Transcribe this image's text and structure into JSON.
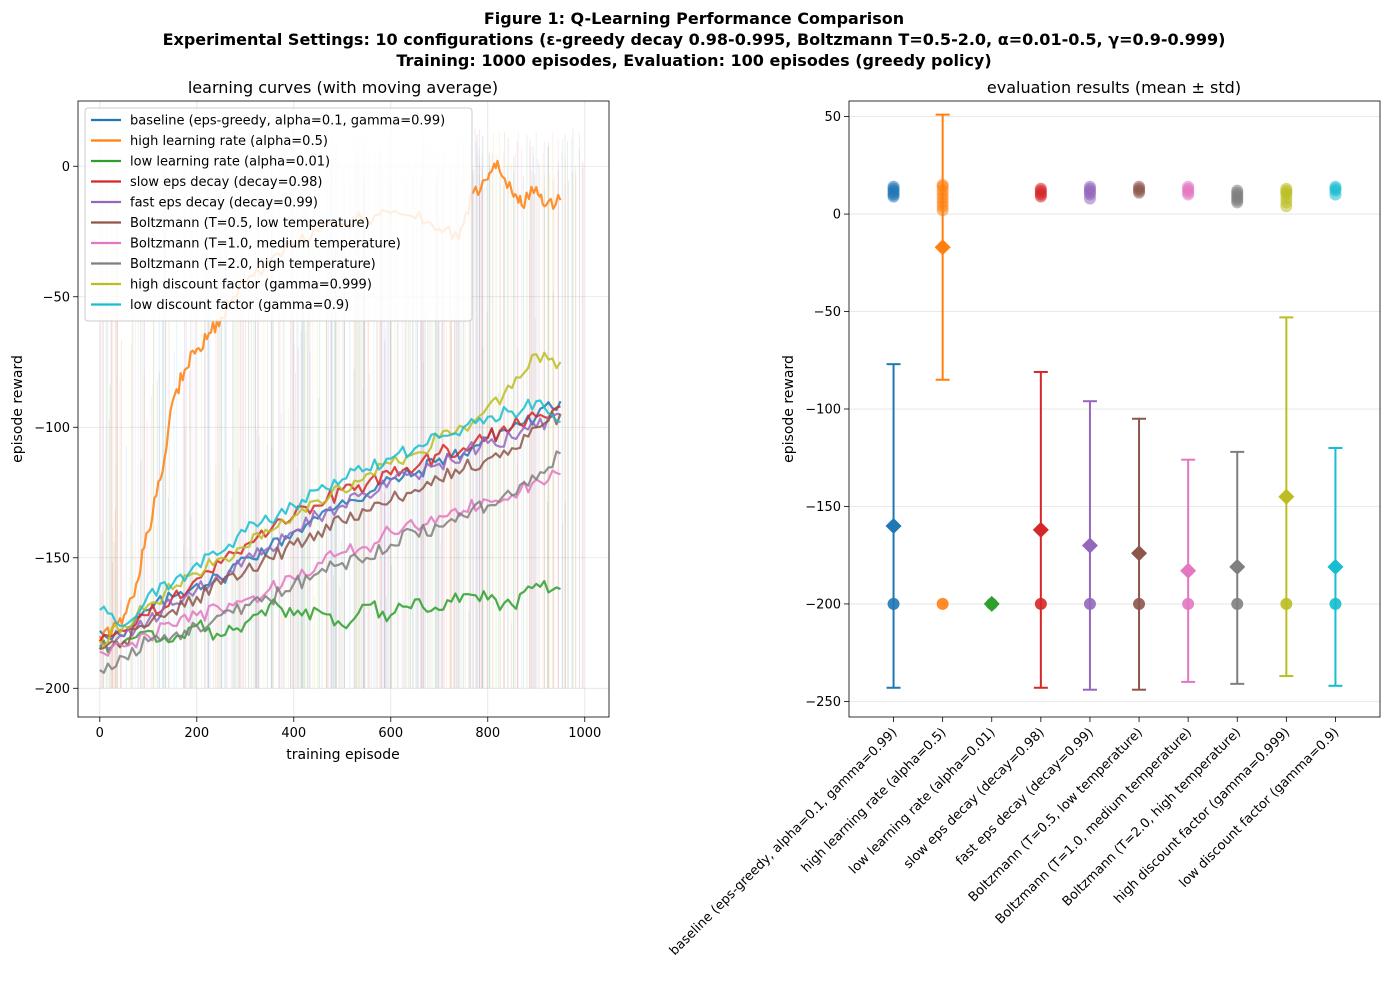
{
  "figure": {
    "title_lines": [
      "Figure 1: Q-Learning Performance Comparison",
      "Experimental Settings: 10 configurations (ε-greedy decay 0.98-0.995, Boltzmann T=0.5-2.0, α=0.01-0.5, γ=0.9-0.999)",
      "Training: 1000 episodes, Evaluation: 100 episodes (greedy policy)"
    ]
  },
  "chart_data": [
    {
      "type": "line",
      "title": "learning curves (with moving average)",
      "xlabel": "training episode",
      "ylabel": "episode reward",
      "xlim": [
        -45,
        1050
      ],
      "ylim": [
        -211,
        25
      ],
      "xticks": [
        0,
        200,
        400,
        600,
        800,
        1000
      ],
      "yticks": [
        0,
        -50,
        -100,
        -150,
        -200
      ],
      "grid": true,
      "legend_position": "top-left",
      "raw_episode_reward_range": [
        -200,
        15
      ],
      "series": [
        {
          "name": "baseline (eps-greedy, alpha=0.1, gamma=0.99)",
          "color": "#1f77b4",
          "x": [
            0,
            50,
            100,
            150,
            200,
            250,
            300,
            350,
            400,
            450,
            500,
            550,
            600,
            650,
            700,
            750,
            800,
            850,
            900,
            950
          ],
          "y": [
            -178,
            -180,
            -170,
            -165,
            -160,
            -158,
            -150,
            -146,
            -140,
            -135,
            -128,
            -126,
            -120,
            -118,
            -112,
            -110,
            -104,
            -100,
            -96,
            -90
          ]
        },
        {
          "name": "high learning rate (alpha=0.5)",
          "color": "#ff7f0e",
          "x": [
            0,
            25,
            50,
            75,
            100,
            125,
            150,
            175,
            200,
            225,
            250,
            275,
            300,
            350,
            400,
            450,
            500,
            550,
            600,
            650,
            700,
            740,
            770,
            800,
            820,
            850,
            870,
            900,
            920,
            950
          ],
          "y": [
            -180,
            -178,
            -172,
            -160,
            -140,
            -120,
            -90,
            -78,
            -70,
            -64,
            -58,
            -50,
            -45,
            -36,
            -30,
            -25,
            -22,
            -20,
            -18,
            -20,
            -24,
            -28,
            -10,
            -5,
            2,
            -10,
            -15,
            -8,
            -15,
            -13
          ]
        },
        {
          "name": "low learning rate (alpha=0.01)",
          "color": "#2ca02c",
          "x": [
            0,
            50,
            100,
            150,
            200,
            250,
            300,
            350,
            400,
            450,
            500,
            550,
            600,
            650,
            700,
            750,
            800,
            850,
            900,
            950
          ],
          "y": [
            -185,
            -182,
            -178,
            -182,
            -176,
            -180,
            -175,
            -168,
            -172,
            -170,
            -176,
            -168,
            -172,
            -166,
            -170,
            -164,
            -166,
            -168,
            -160,
            -162
          ]
        },
        {
          "name": "slow eps decay (decay=0.98)",
          "color": "#d62728",
          "x": [
            0,
            50,
            100,
            150,
            200,
            250,
            300,
            350,
            400,
            450,
            500,
            550,
            600,
            650,
            700,
            750,
            800,
            850,
            900,
            950
          ],
          "y": [
            -182,
            -178,
            -172,
            -165,
            -158,
            -152,
            -145,
            -140,
            -134,
            -130,
            -124,
            -122,
            -118,
            -116,
            -110,
            -108,
            -104,
            -100,
            -96,
            -92
          ]
        },
        {
          "name": "fast eps decay (decay=0.99)",
          "color": "#9467bd",
          "x": [
            0,
            50,
            100,
            150,
            200,
            250,
            300,
            350,
            400,
            450,
            500,
            550,
            600,
            650,
            700,
            750,
            800,
            850,
            900,
            950
          ],
          "y": [
            -184,
            -180,
            -174,
            -168,
            -162,
            -158,
            -150,
            -146,
            -140,
            -134,
            -130,
            -126,
            -120,
            -118,
            -114,
            -110,
            -106,
            -104,
            -100,
            -95
          ]
        },
        {
          "name": "Boltzmann (T=0.5, low temperature)",
          "color": "#8c564b",
          "x": [
            0,
            50,
            100,
            150,
            200,
            250,
            300,
            350,
            400,
            450,
            500,
            550,
            600,
            650,
            700,
            750,
            800,
            850,
            900,
            950
          ],
          "y": [
            -185,
            -182,
            -176,
            -170,
            -165,
            -160,
            -155,
            -150,
            -145,
            -140,
            -136,
            -132,
            -128,
            -124,
            -120,
            -116,
            -112,
            -108,
            -100,
            -95
          ]
        },
        {
          "name": "Boltzmann (T=1.0, medium temperature)",
          "color": "#e377c2",
          "x": [
            0,
            50,
            100,
            150,
            200,
            250,
            300,
            350,
            400,
            450,
            500,
            550,
            600,
            650,
            700,
            750,
            800,
            850,
            900,
            950
          ],
          "y": [
            -186,
            -184,
            -180,
            -176,
            -172,
            -170,
            -166,
            -162,
            -158,
            -152,
            -148,
            -146,
            -140,
            -138,
            -134,
            -132,
            -128,
            -126,
            -120,
            -118
          ]
        },
        {
          "name": "Boltzmann (T=2.0, high temperature)",
          "color": "#7f7f7f",
          "x": [
            0,
            50,
            100,
            150,
            200,
            250,
            300,
            350,
            400,
            450,
            500,
            550,
            600,
            650,
            700,
            750,
            800,
            850,
            900,
            950
          ],
          "y": [
            -193,
            -188,
            -182,
            -180,
            -176,
            -172,
            -168,
            -166,
            -160,
            -156,
            -152,
            -150,
            -145,
            -140,
            -138,
            -134,
            -130,
            -126,
            -120,
            -110
          ]
        },
        {
          "name": "high discount factor (gamma=0.999)",
          "color": "#bcbd22",
          "x": [
            0,
            50,
            100,
            150,
            200,
            250,
            300,
            350,
            400,
            450,
            500,
            550,
            600,
            650,
            700,
            750,
            800,
            850,
            900,
            950
          ],
          "y": [
            -182,
            -176,
            -168,
            -162,
            -156,
            -150,
            -146,
            -140,
            -134,
            -128,
            -124,
            -118,
            -114,
            -110,
            -104,
            -100,
            -92,
            -85,
            -72,
            -75
          ]
        },
        {
          "name": "low discount factor (gamma=0.9)",
          "color": "#17becf",
          "x": [
            0,
            50,
            100,
            150,
            200,
            250,
            300,
            350,
            400,
            450,
            500,
            550,
            600,
            650,
            700,
            750,
            800,
            850,
            900,
            950
          ],
          "y": [
            -170,
            -176,
            -164,
            -160,
            -152,
            -148,
            -140,
            -136,
            -130,
            -124,
            -120,
            -116,
            -112,
            -108,
            -104,
            -100,
            -96,
            -94,
            -90,
            -98
          ]
        }
      ]
    },
    {
      "type": "scatter",
      "title": "evaluation results (mean ± std)",
      "ylabel": "episode reward",
      "ylim": [
        -258,
        58
      ],
      "yticks": [
        50,
        0,
        -50,
        -100,
        -150,
        -200,
        -250
      ],
      "grid": true,
      "categories": [
        "baseline (eps-greedy, alpha=0.1, gamma=0.99)",
        "high learning rate (alpha=0.5)",
        "low learning rate (alpha=0.01)",
        "slow eps decay (decay=0.98)",
        "fast eps decay (decay=0.99)",
        "Boltzmann (T=0.5, low temperature)",
        "Boltzmann (T=1.0, medium temperature)",
        "Boltzmann (T=2.0, high temperature)",
        "high discount factor (gamma=0.999)",
        "low discount factor (gamma=0.9)"
      ],
      "colors": [
        "#1f77b4",
        "#ff7f0e",
        "#2ca02c",
        "#d62728",
        "#9467bd",
        "#8c564b",
        "#e377c2",
        "#7f7f7f",
        "#bcbd22",
        "#17becf"
      ],
      "means": [
        -160,
        -17,
        -200,
        -162,
        -170,
        -174,
        -183,
        -181,
        -145,
        -181
      ],
      "err_low": [
        -243,
        -85,
        -200,
        -243,
        -244,
        -244,
        -240,
        -241,
        -237,
        -242
      ],
      "err_high": [
        -77,
        51,
        -200,
        -81,
        -96,
        -105,
        -126,
        -122,
        -53,
        -120
      ],
      "success_rewards": [
        [
          9,
          10,
          11,
          12,
          13,
          14
        ],
        [
          2,
          4,
          6,
          8,
          10,
          12,
          14,
          15
        ],
        [],
        [
          9,
          10,
          11,
          12,
          13
        ],
        [
          8,
          10,
          11,
          12,
          13,
          14
        ],
        [
          11,
          12,
          13,
          14
        ],
        [
          10,
          11,
          12,
          13,
          14
        ],
        [
          6,
          7,
          8,
          9,
          10,
          11,
          12
        ],
        [
          4,
          6,
          8,
          10,
          11,
          12,
          13
        ],
        [
          10,
          12,
          13,
          14
        ]
      ],
      "failure_reward": -200
    }
  ]
}
